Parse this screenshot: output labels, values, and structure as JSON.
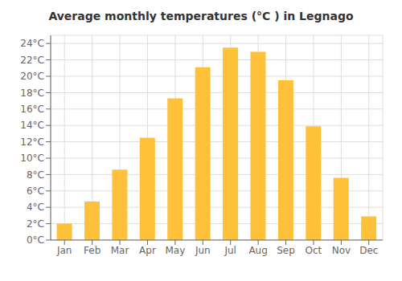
{
  "chart_data": {
    "type": "bar",
    "title": "Average monthly temperatures (°C ) in Legnago",
    "categories": [
      "Jan",
      "Feb",
      "Mar",
      "Apr",
      "May",
      "Jun",
      "Jul",
      "Aug",
      "Sep",
      "Oct",
      "Nov",
      "Dec"
    ],
    "values": [
      2.0,
      4.7,
      8.6,
      12.5,
      17.3,
      21.1,
      23.5,
      23.0,
      19.5,
      13.9,
      7.6,
      2.9
    ],
    "color": "#FFC03A",
    "ylim": [
      0,
      25
    ],
    "yticks": [
      {
        "value": 0,
        "label": "0°C"
      },
      {
        "value": 2,
        "label": "2°C"
      },
      {
        "value": 4,
        "label": "4°C"
      },
      {
        "value": 6,
        "label": "6°C"
      },
      {
        "value": 8,
        "label": "8°C"
      },
      {
        "value": 10,
        "label": "10°C"
      },
      {
        "value": 12,
        "label": "12°C"
      },
      {
        "value": 14,
        "label": "14°C"
      },
      {
        "value": 16,
        "label": "16°C"
      },
      {
        "value": 18,
        "label": "18°C"
      },
      {
        "value": 20,
        "label": "20°C"
      },
      {
        "value": 22,
        "label": "22°C"
      },
      {
        "value": 24,
        "label": "24°C"
      }
    ],
    "grid": true
  }
}
